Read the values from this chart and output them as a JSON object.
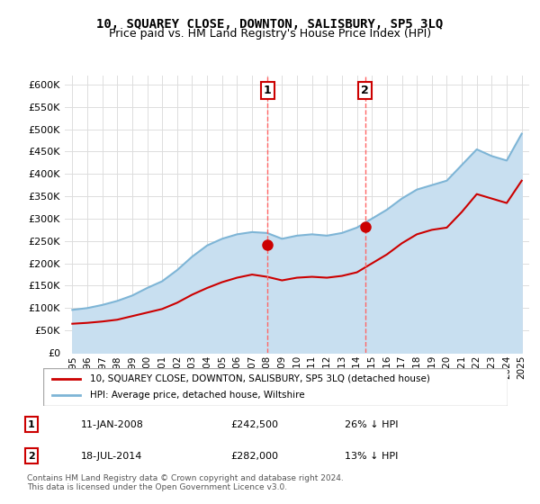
{
  "title": "10, SQUAREY CLOSE, DOWNTON, SALISBURY, SP5 3LQ",
  "subtitle": "Price paid vs. HM Land Registry's House Price Index (HPI)",
  "legend_line1": "10, SQUAREY CLOSE, DOWNTON, SALISBURY, SP5 3LQ (detached house)",
  "legend_line2": "HPI: Average price, detached house, Wiltshire",
  "sale1_label": "1",
  "sale1_date": "11-JAN-2008",
  "sale1_price": "£242,500",
  "sale1_note": "26% ↓ HPI",
  "sale2_label": "2",
  "sale2_date": "18-JUL-2014",
  "sale2_price": "£282,000",
  "sale2_note": "13% ↓ HPI",
  "footer": "Contains HM Land Registry data © Crown copyright and database right 2024.\nThis data is licensed under the Open Government Licence v3.0.",
  "hpi_color": "#7eb5d6",
  "hpi_fill_color": "#c8dff0",
  "sale_color": "#cc0000",
  "marker_color": "#cc0000",
  "annotation_vline_color": "#ff6666",
  "sale1_x": 2008.03,
  "sale1_y": 242500,
  "sale2_x": 2014.55,
  "sale2_y": 282000,
  "ylim_min": 0,
  "ylim_max": 620000,
  "xlim_min": 1994.5,
  "xlim_max": 2025.5,
  "hpi_years": [
    1995,
    1996,
    1997,
    1998,
    1999,
    2000,
    2001,
    2002,
    2003,
    2004,
    2005,
    2006,
    2007,
    2008,
    2009,
    2010,
    2011,
    2012,
    2013,
    2014,
    2015,
    2016,
    2017,
    2018,
    2019,
    2020,
    2021,
    2022,
    2023,
    2024,
    2025
  ],
  "hpi_values": [
    96000,
    100000,
    107000,
    116000,
    128000,
    145000,
    160000,
    185000,
    215000,
    240000,
    255000,
    265000,
    270000,
    268000,
    255000,
    262000,
    265000,
    262000,
    268000,
    280000,
    300000,
    320000,
    345000,
    365000,
    375000,
    385000,
    420000,
    455000,
    440000,
    430000,
    490000
  ],
  "sale_years": [
    1995,
    1996,
    1997,
    1998,
    1999,
    2000,
    2001,
    2002,
    2003,
    2004,
    2005,
    2006,
    2007,
    2008,
    2009,
    2010,
    2011,
    2012,
    2013,
    2014,
    2015,
    2016,
    2017,
    2018,
    2019,
    2020,
    2021,
    2022,
    2023,
    2024,
    2025
  ],
  "sale_values": [
    65000,
    67000,
    70000,
    74000,
    82000,
    90000,
    98000,
    112000,
    130000,
    145000,
    158000,
    168000,
    175000,
    170000,
    162000,
    168000,
    170000,
    168000,
    172000,
    180000,
    200000,
    220000,
    245000,
    265000,
    275000,
    280000,
    315000,
    355000,
    345000,
    335000,
    385000
  ],
  "yticks": [
    0,
    50000,
    100000,
    150000,
    200000,
    250000,
    300000,
    350000,
    400000,
    450000,
    500000,
    550000,
    600000
  ],
  "ytick_labels": [
    "£0",
    "£50K",
    "£100K",
    "£150K",
    "£200K",
    "£250K",
    "£300K",
    "£350K",
    "£400K",
    "£450K",
    "£500K",
    "£550K",
    "£600K"
  ],
  "xticks": [
    1995,
    1996,
    1997,
    1998,
    1999,
    2000,
    2001,
    2002,
    2003,
    2004,
    2005,
    2006,
    2007,
    2008,
    2009,
    2010,
    2011,
    2012,
    2013,
    2014,
    2015,
    2016,
    2017,
    2018,
    2019,
    2020,
    2021,
    2022,
    2023,
    2024,
    2025
  ]
}
